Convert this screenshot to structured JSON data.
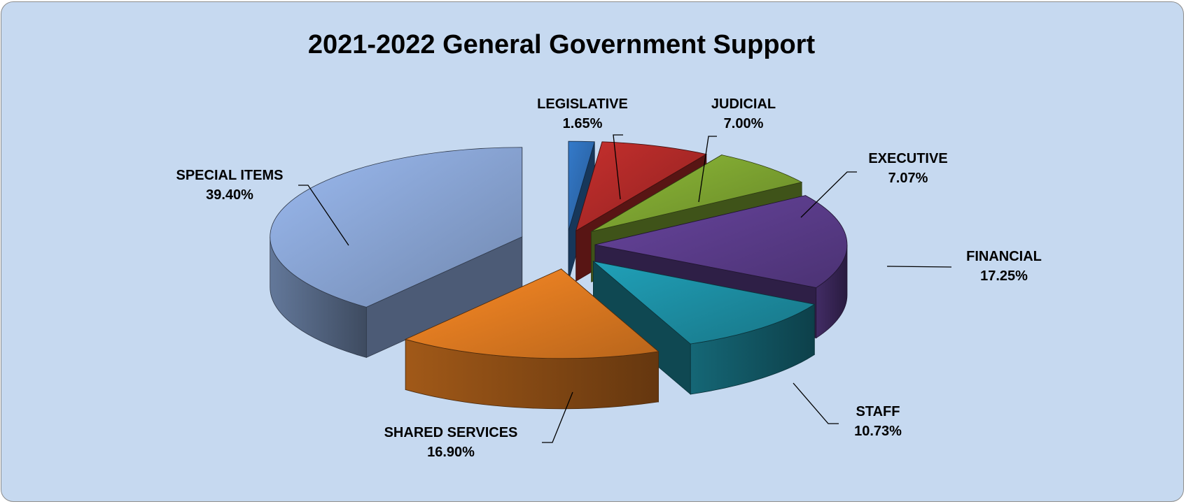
{
  "chart_data": {
    "type": "pie",
    "title": "2021-2022 General Government Support",
    "slices": [
      {
        "name": "LEGISLATIVE",
        "value": 1.65,
        "label": "1.65%",
        "color": "#2e6db4"
      },
      {
        "name": "JUDICIAL",
        "value": 7.0,
        "label": "7.00%",
        "color": "#b02a28"
      },
      {
        "name": "EXECUTIVE",
        "value": 7.07,
        "label": "7.07%",
        "color": "#7ea531"
      },
      {
        "name": "FINANCIAL",
        "value": 17.25,
        "label": "17.25%",
        "color": "#5c3d8c"
      },
      {
        "name": "STAFF",
        "value": 10.73,
        "label": "10.73%",
        "color": "#1d8fa4"
      },
      {
        "name": "SHARED SERVICES",
        "value": 16.9,
        "label": "16.90%",
        "color": "#e07b21"
      },
      {
        "name": "SPECIAL ITEMS",
        "value": 39.4,
        "label": "39.40%",
        "color": "#8aa6d6"
      }
    ],
    "style": "3d-exploded",
    "legend": "none"
  }
}
